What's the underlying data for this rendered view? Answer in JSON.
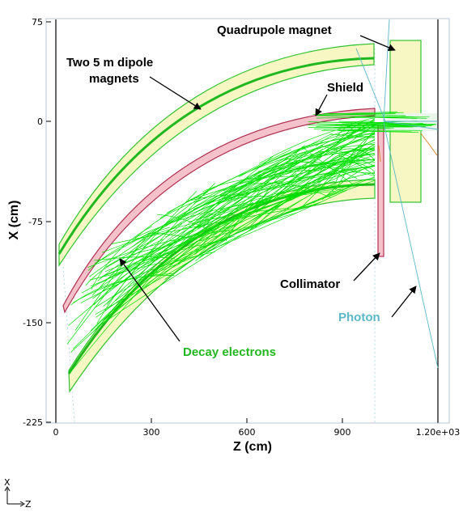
{
  "chart_data": {
    "type": "diagram",
    "xlabel": "Z (cm)",
    "ylabel": "X (cm)",
    "x_ticks": [
      "0",
      "300",
      "600",
      "900",
      "1.20e+03"
    ],
    "y_ticks": [
      "75",
      "0",
      "-75",
      "-150",
      "-225"
    ],
    "xlim": [
      0,
      1200
    ],
    "ylim": [
      -225,
      75
    ]
  },
  "annotations": {
    "quadrupole": "Quadrupole magnet",
    "dipole_line1": "Two 5 m dipole",
    "dipole_line2": "magnets",
    "shield": "Shield",
    "collimator": "Collimator",
    "photon": "Photon",
    "decay_electrons": "Decay electrons"
  },
  "orientation": {
    "x": "X",
    "z": "Z"
  },
  "colors": {
    "magnet_fill": "#f7f7c3",
    "magnet_stroke": "#2fc42f",
    "shield_fill": "#f5c2cc",
    "shield_stroke": "#b03050",
    "electron": "#00e000",
    "photon": "#5cb8c8",
    "annotation_green": "#22b822",
    "annotation_cyan": "#5cb8c8"
  }
}
